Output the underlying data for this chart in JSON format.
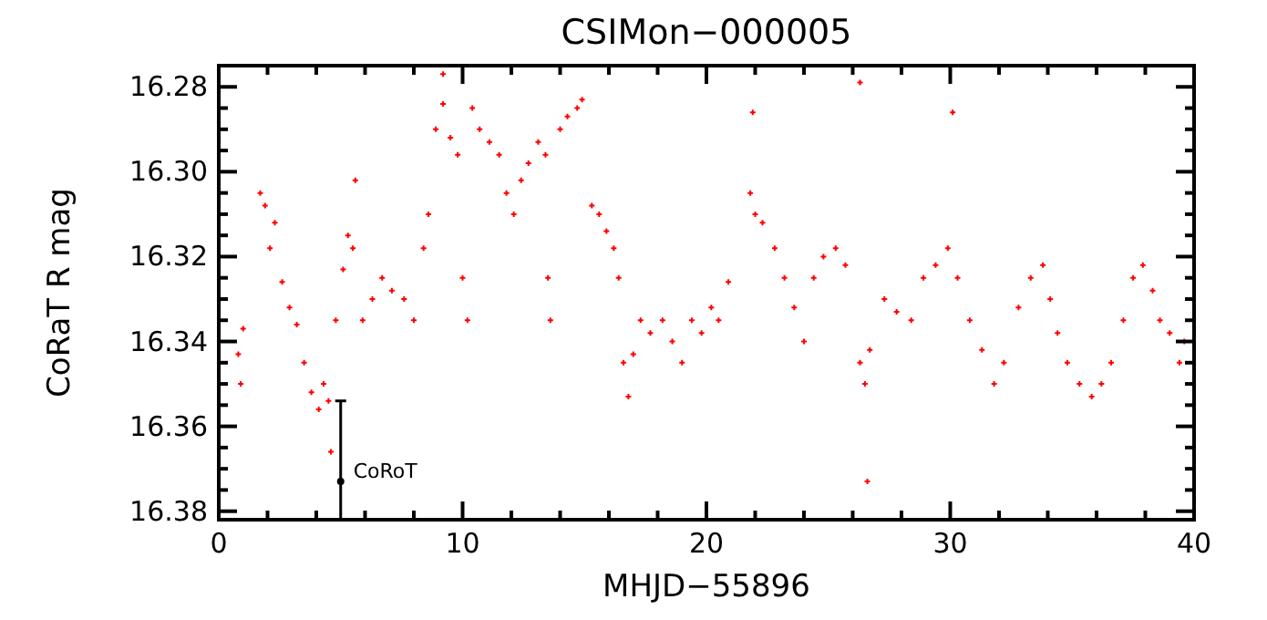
{
  "chart_data": {
    "type": "scatter",
    "title": "CSIMon−000005",
    "xlabel": "MHJD−55896",
    "ylabel": "CoRaT R mag",
    "xlim": [
      0,
      40
    ],
    "xticks": [
      0,
      {
        "value": 2,
        "label": null
      },
      {
        "value": 4,
        "label": null
      },
      {
        "value": 6,
        "label": null
      },
      {
        "value": 8,
        "label": null
      },
      10,
      {
        "value": 12,
        "label": null
      },
      {
        "value": 14,
        "label": null
      },
      {
        "value": 16,
        "label": null
      },
      {
        "value": 18,
        "label": null
      },
      20,
      {
        "value": 22,
        "label": null
      },
      {
        "value": 24,
        "label": null
      },
      {
        "value": 26,
        "label": null
      },
      {
        "value": 28,
        "label": null
      },
      30,
      {
        "value": 32,
        "label": null
      },
      {
        "value": 34,
        "label": null
      },
      {
        "value": 36,
        "label": null
      },
      {
        "value": 38,
        "label": null
      },
      40
    ],
    "ylim": [
      16.382,
      16.275
    ],
    "yticks": [
      {
        "value": 16.28,
        "label": "16.28"
      },
      {
        "value": 16.285,
        "label": null
      },
      {
        "value": 16.29,
        "label": null
      },
      {
        "value": 16.295,
        "label": null
      },
      {
        "value": 16.3,
        "label": "16.30"
      },
      {
        "value": 16.305,
        "label": null
      },
      {
        "value": 16.31,
        "label": null
      },
      {
        "value": 16.315,
        "label": null
      },
      {
        "value": 16.32,
        "label": "16.32"
      },
      {
        "value": 16.325,
        "label": null
      },
      {
        "value": 16.33,
        "label": null
      },
      {
        "value": 16.335,
        "label": null
      },
      {
        "value": 16.34,
        "label": "16.34"
      },
      {
        "value": 16.345,
        "label": null
      },
      {
        "value": 16.35,
        "label": null
      },
      {
        "value": 16.355,
        "label": null
      },
      {
        "value": 16.36,
        "label": "16.36"
      },
      {
        "value": 16.365,
        "label": null
      },
      {
        "value": 16.37,
        "label": null
      },
      {
        "value": 16.375,
        "label": null
      },
      {
        "value": 16.38,
        "label": "16.38"
      }
    ],
    "grid": false,
    "marker": "cross",
    "annotations": [
      {
        "text": "CoRoT",
        "x": 5,
        "y": 16.373
      }
    ],
    "series": [
      {
        "color": "#ff0000",
        "x": [
          0.8,
          0.9,
          1.0,
          1.7,
          1.9,
          2.1,
          2.3,
          2.6,
          2.9,
          3.2,
          3.5,
          3.8,
          4.1,
          4.3,
          4.5,
          4.6,
          4.8,
          5.1,
          5.3,
          5.5,
          5.6,
          5.9,
          6.3,
          6.7,
          7.1,
          7.6,
          8.0,
          8.4,
          8.6,
          8.9,
          9.2,
          9.2,
          9.5,
          9.8,
          10.0,
          10.2,
          10.4,
          10.7,
          11.1,
          11.5,
          11.8,
          12.1,
          12.4,
          12.7,
          13.1,
          13.4,
          13.5,
          13.6,
          14.0,
          14.3,
          14.7,
          14.9,
          15.3,
          15.6,
          15.9,
          16.2,
          16.4,
          16.6,
          16.8,
          17.0,
          17.3,
          17.7,
          18.2,
          18.6,
          19.0,
          19.4,
          19.8,
          20.2,
          20.5,
          20.9,
          21.8,
          21.9,
          22.0,
          22.3,
          22.8,
          23.2,
          23.6,
          24.0,
          24.4,
          24.8,
          25.3,
          25.7,
          26.3,
          26.3,
          26.5,
          26.6,
          26.7,
          27.3,
          27.8,
          28.4,
          28.9,
          29.4,
          29.9,
          30.1,
          30.3,
          30.8,
          31.3,
          31.8,
          32.2,
          32.8,
          33.3,
          33.8,
          34.1,
          34.4,
          34.8,
          35.3,
          35.8,
          36.2,
          36.6,
          37.1,
          37.5,
          37.9,
          38.3,
          38.6,
          39.0,
          39.4,
          39.6
        ],
        "values": [
          16.343,
          16.35,
          16.337,
          16.305,
          16.308,
          16.318,
          16.312,
          16.326,
          16.332,
          16.336,
          16.345,
          16.352,
          16.356,
          16.35,
          16.354,
          16.366,
          16.335,
          16.323,
          16.315,
          16.318,
          16.302,
          16.335,
          16.33,
          16.325,
          16.328,
          16.33,
          16.335,
          16.318,
          16.31,
          16.29,
          16.284,
          16.277,
          16.292,
          16.296,
          16.325,
          16.335,
          16.285,
          16.29,
          16.293,
          16.296,
          16.305,
          16.31,
          16.302,
          16.298,
          16.293,
          16.296,
          16.325,
          16.335,
          16.29,
          16.287,
          16.285,
          16.283,
          16.308,
          16.31,
          16.314,
          16.318,
          16.325,
          16.345,
          16.353,
          16.343,
          16.335,
          16.338,
          16.335,
          16.34,
          16.345,
          16.335,
          16.338,
          16.332,
          16.335,
          16.326,
          16.305,
          16.286,
          16.31,
          16.312,
          16.318,
          16.325,
          16.332,
          16.34,
          16.325,
          16.32,
          16.318,
          16.322,
          16.345,
          16.279,
          16.35,
          16.373,
          16.342,
          16.33,
          16.333,
          16.335,
          16.325,
          16.322,
          16.318,
          16.286,
          16.325,
          16.335,
          16.342,
          16.35,
          16.345,
          16.332,
          16.325,
          16.322,
          16.33,
          16.338,
          16.345,
          16.35,
          16.353,
          16.35,
          16.345,
          16.335,
          16.325,
          16.322,
          16.328,
          16.335,
          16.338,
          16.345,
          16.34
        ]
      },
      {
        "color": "#000000",
        "marker": "circle",
        "x": [
          5
        ],
        "values": [
          16.373
        ],
        "errors": [
          [
            16.354,
            16.382
          ]
        ]
      }
    ]
  }
}
